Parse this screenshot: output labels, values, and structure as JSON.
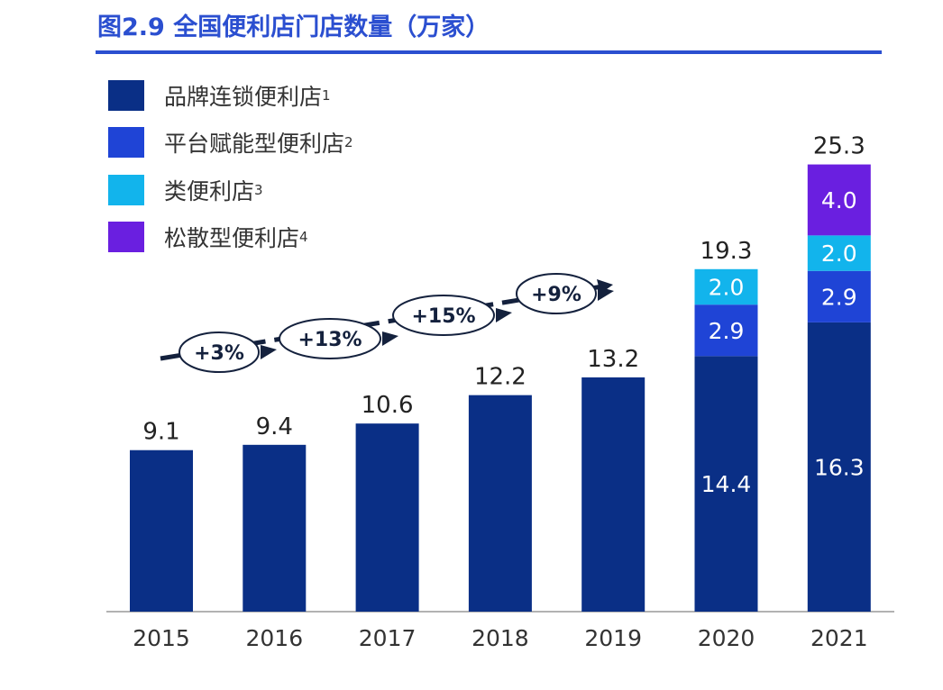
{
  "chart_data": {
    "type": "bar",
    "stacked": true,
    "title": "图2.9 全国便利店门店数量（万家）",
    "categories": [
      "2015",
      "2016",
      "2017",
      "2018",
      "2019",
      "2020",
      "2021"
    ],
    "series": [
      {
        "name": "品牌连锁便利店",
        "note": "1",
        "color": "#0a2f86",
        "values": [
          9.1,
          9.4,
          10.6,
          12.2,
          13.2,
          14.4,
          16.3
        ]
      },
      {
        "name": "平台赋能型便利店",
        "note": "2",
        "color": "#1f44d6",
        "values": [
          0,
          0,
          0,
          0,
          0,
          2.9,
          2.9
        ]
      },
      {
        "name": "类便利店",
        "note": "3",
        "color": "#12b4ec",
        "values": [
          0,
          0,
          0,
          0,
          0,
          2.0,
          2.0
        ]
      },
      {
        "name": "松散型便利店",
        "note": "4",
        "color": "#6a1fe0",
        "values": [
          0,
          0,
          0,
          0,
          0,
          0,
          4.0
        ]
      }
    ],
    "totals": [
      "9.1",
      "9.4",
      "10.6",
      "12.2",
      "13.2",
      "19.3",
      "25.3"
    ],
    "growth_labels": [
      "+3%",
      "+13%",
      "+15%",
      "+9%"
    ],
    "ylim": [
      0,
      26
    ],
    "grid": false,
    "legend": "top-left"
  }
}
